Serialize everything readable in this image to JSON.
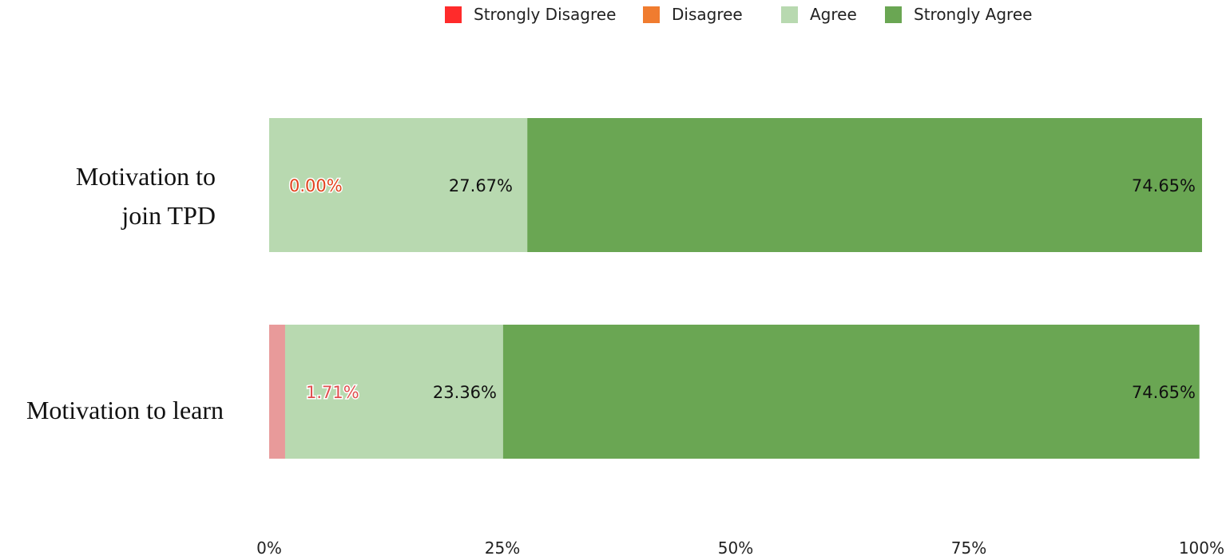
{
  "chart_data": {
    "type": "bar",
    "orientation": "horizontal",
    "stacked": true,
    "title": "",
    "xlabel": "",
    "ylabel": "",
    "xlim": [
      0,
      100
    ],
    "x_tick_labels": [
      "0%",
      "25%",
      "50%",
      "75%",
      "100%"
    ],
    "legend_position": "top",
    "grid": false,
    "categories": [
      "Motivation to join TPD",
      "Motivation to learn"
    ],
    "category_label_lines": [
      [
        "Motivation to",
        "join TPD"
      ],
      [
        "Motivation to learn"
      ]
    ],
    "series": [
      {
        "name": "Strongly Disagree",
        "color": "#ff2b2b",
        "bar_color": "#e89a9a",
        "values": [
          0,
          1.71
        ]
      },
      {
        "name": "Disagree",
        "color": "#f07c2f",
        "bar_color": "#f07c2f",
        "values": [
          0,
          0
        ]
      },
      {
        "name": "Agree",
        "color": "#b8d9b0",
        "bar_color": "#b8d9b0",
        "values": [
          27.67,
          23.36
        ]
      },
      {
        "name": "Strongly Agree",
        "color": "#6aa653",
        "bar_color": "#6aa653",
        "values": [
          74.65,
          74.65
        ]
      }
    ],
    "data_labels": [
      [
        {
          "text": "0.00%",
          "color": "#e2431e",
          "series": "Strongly Disagree"
        },
        {
          "text": "27.67%",
          "color": "#111111",
          "series": "Agree"
        },
        {
          "text": "74.65%",
          "color": "#111111",
          "series": "Strongly Agree"
        }
      ],
      [
        {
          "text": "1.71%",
          "color": "#e05050",
          "series": "Strongly Disagree"
        },
        {
          "text": "23.36%",
          "color": "#111111",
          "series": "Agree"
        },
        {
          "text": "74.65%",
          "color": "#111111",
          "series": "Strongly Agree"
        }
      ]
    ]
  }
}
